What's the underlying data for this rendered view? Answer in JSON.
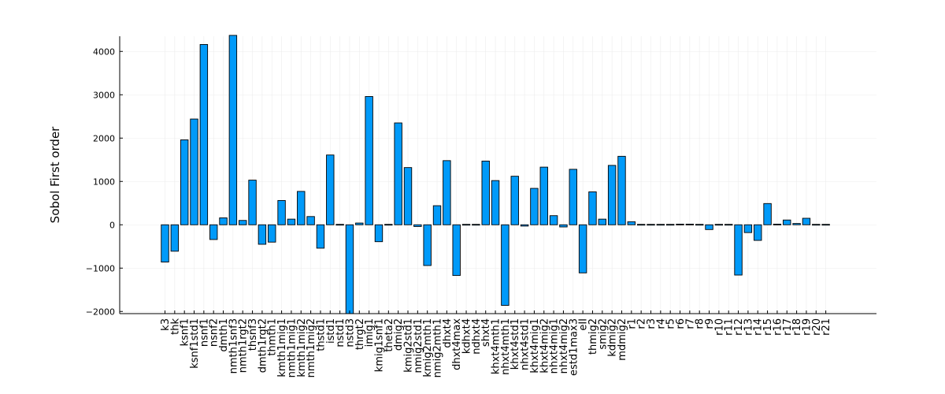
{
  "chart_data": {
    "type": "bar",
    "title": "",
    "xlabel": "",
    "ylabel": "Sobol First order",
    "ylim": [
      -2050,
      4350
    ],
    "yticks": [
      -2000,
      -1000,
      0,
      1000,
      2000,
      3000,
      4000
    ],
    "ytick_labels": [
      "−2000",
      "−1000",
      "0",
      "1000",
      "2000",
      "3000",
      "4000"
    ],
    "grid": true,
    "legend": "none",
    "bar_color": "#009af9",
    "categories": [
      "k3",
      "thk",
      "ksnf1",
      "ksnf1std1",
      "nsnf1",
      "nsnf2",
      "dmth1",
      "nmth1snf3",
      "nmth1rgt2",
      "thsnf3",
      "dmth1rgt2",
      "thmth1",
      "kmth1mig1",
      "nmth1mig1",
      "kmth1mig2",
      "nmth1mig2",
      "thstd1",
      "istd1",
      "nstd1",
      "nstd3",
      "thrgt2",
      "imig1",
      "kmig1snf1",
      "theta2",
      "dmig2",
      "kmig2std1",
      "nmig2std1",
      "kmig2mth1",
      "nmig2mth1",
      "dhxt4",
      "dhxt4max",
      "kdhxt4",
      "ndhxt4",
      "shxt4",
      "khxt4mth1",
      "nhxt4mth1",
      "khxt4std1",
      "nhxt4std1",
      "khxt4mig1",
      "khxt4mig2",
      "nhxt4mig1",
      "nhxt4mig2",
      "estd1max3",
      "eII",
      "thmig2",
      "smig2",
      "kdmig2",
      "mdmig2",
      "r1",
      "r2",
      "r3",
      "r4",
      "r5",
      "r6",
      "r7",
      "r8",
      "r9",
      "r10",
      "r11",
      "r12",
      "r13",
      "r14",
      "r15",
      "r16",
      "r17",
      "r18",
      "r19",
      "r20",
      "r21"
    ],
    "values": [
      -860,
      -610,
      1960,
      2440,
      4160,
      -340,
      160,
      4370,
      100,
      1030,
      -450,
      -400,
      560,
      130,
      770,
      190,
      -540,
      1610,
      10,
      -2050,
      40,
      2960,
      -390,
      10,
      2350,
      1320,
      -40,
      -940,
      440,
      1480,
      -1170,
      10,
      10,
      1470,
      1020,
      -1860,
      1120,
      -30,
      840,
      1330,
      210,
      -50,
      1280,
      -1110,
      760,
      130,
      1370,
      1580,
      70,
      10,
      10,
      10,
      10,
      15,
      15,
      10,
      -110,
      10,
      10,
      -1160,
      -180,
      -360,
      490,
      15,
      110,
      30,
      150,
      10,
      10
    ]
  }
}
